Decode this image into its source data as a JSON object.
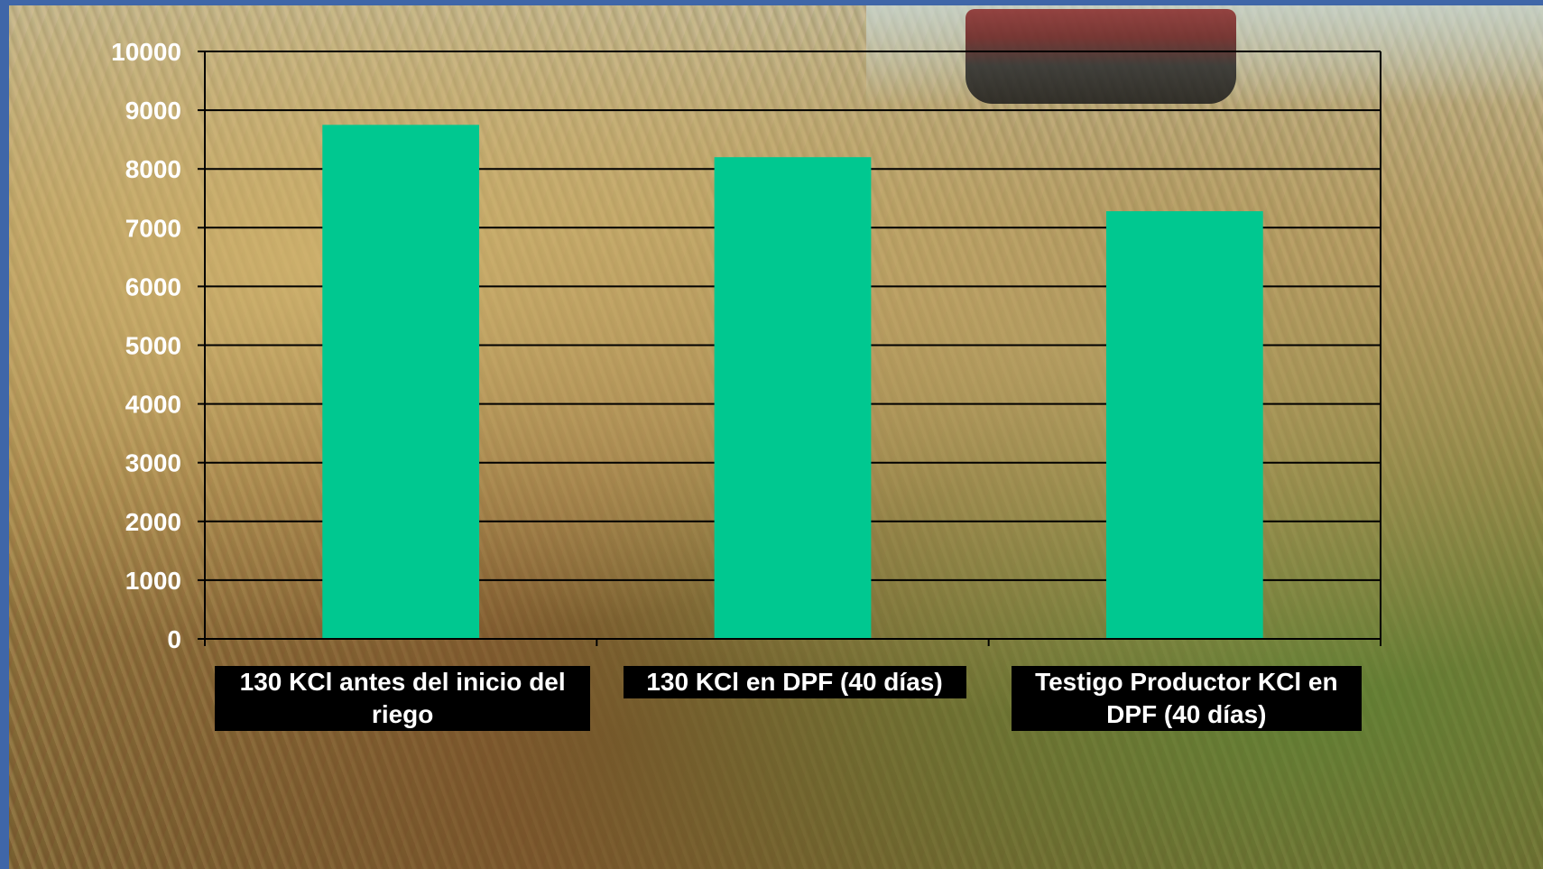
{
  "chart_data": {
    "type": "bar",
    "categories": [
      "130 KCl antes del inicio del riego",
      "130 KCl en DPF (40 días)",
      "Testigo Productor KCl en DPF (40 días)"
    ],
    "category_lines": [
      [
        "130 KCl antes del inicio del",
        "riego"
      ],
      [
        "130 KCl en DPF (40 días)"
      ],
      [
        "Testigo Productor KCl en",
        "DPF (40 días)"
      ]
    ],
    "values": [
      8750,
      8200,
      7280
    ],
    "ylim": [
      0,
      10000
    ],
    "yticks": [
      0,
      1000,
      2000,
      3000,
      4000,
      5000,
      6000,
      7000,
      8000,
      9000,
      10000
    ],
    "title": "",
    "xlabel": "",
    "ylabel": "",
    "grid": true,
    "bar_color": "#00c890",
    "grid_color": "#000000",
    "tick_label_color": "#ffffff",
    "category_label_bg": "#000000"
  }
}
